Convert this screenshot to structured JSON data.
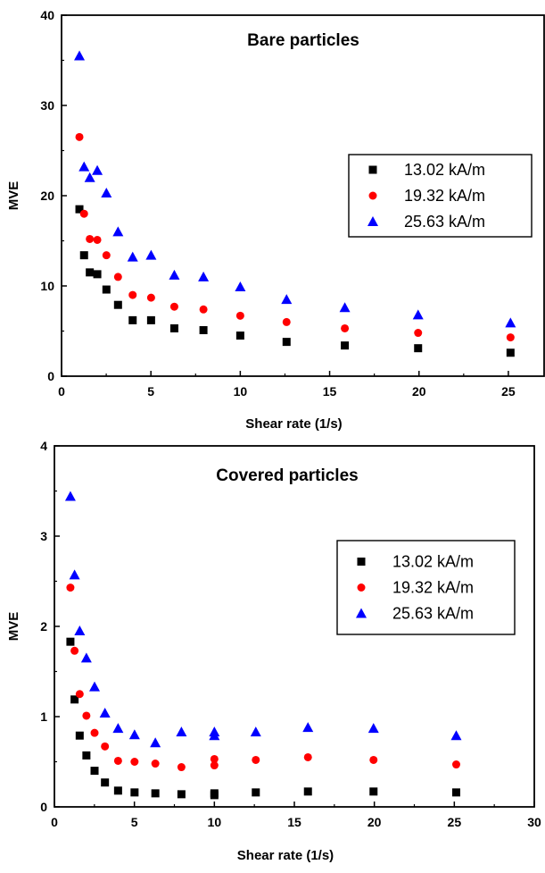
{
  "chart_data": [
    {
      "type": "scatter",
      "title": "Bare particles",
      "xlabel": "Shear rate (1/s)",
      "ylabel": "MVE",
      "xlim": [
        0,
        27
      ],
      "ylim": [
        0,
        40
      ],
      "xticks": [
        0,
        5,
        10,
        15,
        20,
        25
      ],
      "yticks": [
        0,
        10,
        20,
        30,
        40
      ],
      "legend_position": "right",
      "series": [
        {
          "name": "13.02 kA/m",
          "marker": "square",
          "color": "#000000",
          "points": [
            [
              1.0,
              18.5
            ],
            [
              1.26,
              13.4
            ],
            [
              1.58,
              11.5
            ],
            [
              2.0,
              11.3
            ],
            [
              2.51,
              9.6
            ],
            [
              3.16,
              7.9
            ],
            [
              3.98,
              6.2
            ],
            [
              5.01,
              6.2
            ],
            [
              6.31,
              5.3
            ],
            [
              7.94,
              5.1
            ],
            [
              10.0,
              4.5
            ],
            [
              12.59,
              3.8
            ],
            [
              15.85,
              3.4
            ],
            [
              19.95,
              3.1
            ],
            [
              25.12,
              2.6
            ]
          ]
        },
        {
          "name": "19.32 kA/m",
          "marker": "circle",
          "color": "#ff0000",
          "points": [
            [
              1.0,
              26.5
            ],
            [
              1.26,
              18.0
            ],
            [
              1.58,
              15.2
            ],
            [
              2.0,
              15.1
            ],
            [
              2.51,
              13.4
            ],
            [
              3.16,
              11.0
            ],
            [
              3.98,
              9.0
            ],
            [
              5.01,
              8.7
            ],
            [
              6.31,
              7.7
            ],
            [
              7.94,
              7.4
            ],
            [
              10.0,
              6.7
            ],
            [
              12.59,
              6.0
            ],
            [
              15.85,
              5.3
            ],
            [
              19.95,
              4.8
            ],
            [
              25.12,
              4.3
            ]
          ]
        },
        {
          "name": "25.63 kA/m",
          "marker": "triangle",
          "color": "#0000ff",
          "points": [
            [
              1.0,
              35.5
            ],
            [
              1.26,
              23.2
            ],
            [
              1.58,
              22.0
            ],
            [
              2.0,
              22.8
            ],
            [
              2.51,
              20.3
            ],
            [
              3.16,
              16.0
            ],
            [
              3.98,
              13.2
            ],
            [
              5.01,
              13.4
            ],
            [
              6.31,
              11.2
            ],
            [
              7.94,
              11.0
            ],
            [
              10.0,
              9.9
            ],
            [
              12.59,
              8.5
            ],
            [
              15.85,
              7.6
            ],
            [
              19.95,
              6.8
            ],
            [
              25.12,
              5.9
            ]
          ]
        }
      ]
    },
    {
      "type": "scatter",
      "title": "Covered particles",
      "xlabel": "Shear rate (1/s)",
      "ylabel": "MVE",
      "xlim": [
        0,
        30
      ],
      "ylim": [
        0,
        4
      ],
      "xticks": [
        0,
        5,
        10,
        15,
        20,
        25,
        30
      ],
      "yticks": [
        0,
        1,
        2,
        3,
        4
      ],
      "legend_position": "right",
      "series": [
        {
          "name": "13.02 kA/m",
          "marker": "square",
          "color": "#000000",
          "points": [
            [
              1.0,
              1.83
            ],
            [
              1.26,
              1.19
            ],
            [
              1.58,
              0.79
            ],
            [
              2.0,
              0.57
            ],
            [
              2.51,
              0.4
            ],
            [
              3.16,
              0.27
            ],
            [
              3.98,
              0.18
            ],
            [
              5.01,
              0.16
            ],
            [
              6.31,
              0.15
            ],
            [
              7.94,
              0.14
            ],
            [
              10.0,
              0.15
            ],
            [
              10.0,
              0.13
            ],
            [
              12.59,
              0.16
            ],
            [
              15.85,
              0.17
            ],
            [
              19.95,
              0.17
            ],
            [
              25.12,
              0.16
            ]
          ]
        },
        {
          "name": "19.32 kA/m",
          "marker": "circle",
          "color": "#ff0000",
          "points": [
            [
              1.0,
              2.43
            ],
            [
              1.26,
              1.73
            ],
            [
              1.58,
              1.25
            ],
            [
              2.0,
              1.01
            ],
            [
              2.51,
              0.82
            ],
            [
              3.16,
              0.67
            ],
            [
              3.98,
              0.51
            ],
            [
              5.01,
              0.5
            ],
            [
              6.31,
              0.48
            ],
            [
              7.94,
              0.44
            ],
            [
              10.0,
              0.53
            ],
            [
              10.0,
              0.46
            ],
            [
              12.59,
              0.52
            ],
            [
              15.85,
              0.55
            ],
            [
              19.95,
              0.52
            ],
            [
              25.12,
              0.47
            ]
          ]
        },
        {
          "name": "25.63 kA/m",
          "marker": "triangle",
          "color": "#0000ff",
          "points": [
            [
              1.0,
              3.44
            ],
            [
              1.26,
              2.57
            ],
            [
              1.58,
              1.95
            ],
            [
              2.0,
              1.65
            ],
            [
              2.51,
              1.33
            ],
            [
              3.16,
              1.04
            ],
            [
              3.98,
              0.87
            ],
            [
              5.01,
              0.8
            ],
            [
              6.31,
              0.71
            ],
            [
              7.94,
              0.83
            ],
            [
              10.0,
              0.83
            ],
            [
              10.0,
              0.79
            ],
            [
              12.59,
              0.83
            ],
            [
              15.85,
              0.88
            ],
            [
              19.95,
              0.87
            ],
            [
              25.12,
              0.79
            ]
          ]
        }
      ]
    }
  ]
}
